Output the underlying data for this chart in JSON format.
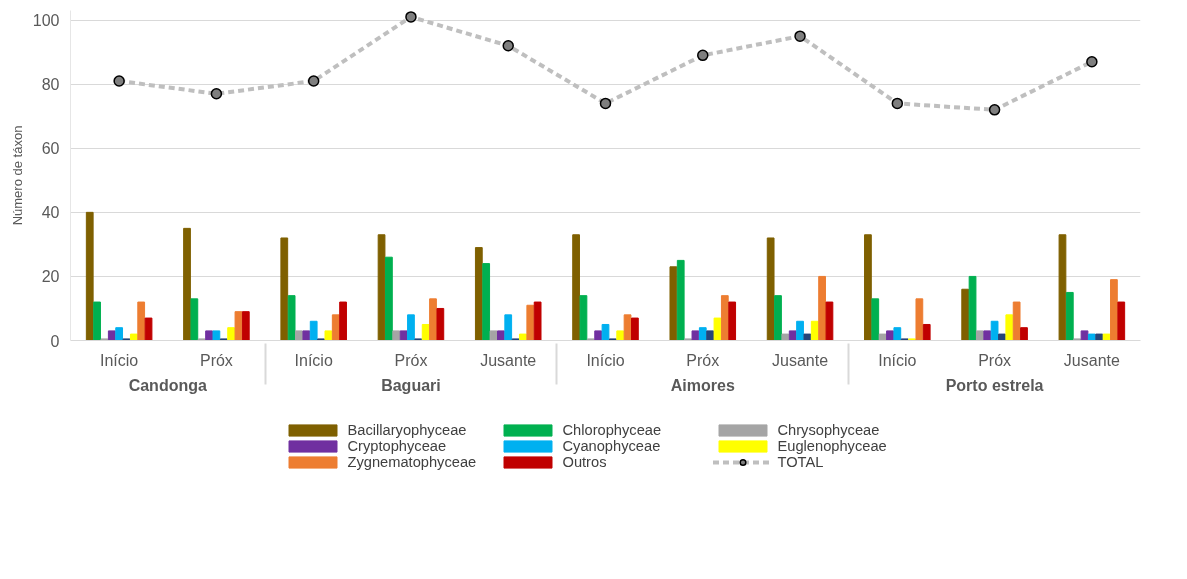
{
  "chart_data": {
    "type": "bar",
    "ylabel": "Número de táxon",
    "categories": [
      [
        "Candonga",
        "Início"
      ],
      [
        null,
        "Próx"
      ],
      [
        "Baguari",
        "Início"
      ],
      [
        null,
        "Próx"
      ],
      [
        null,
        "Jusante"
      ],
      [
        "Aimores",
        "Início"
      ],
      [
        null,
        "Próx"
      ],
      [
        null,
        "Jusante"
      ],
      [
        "Porto estrela",
        "Início"
      ],
      [
        null,
        "Próx"
      ],
      [
        null,
        "Jusante"
      ]
    ],
    "series": [
      {
        "name": "Bacillaryophyceae",
        "color": "#7f6000",
        "values": [
          40,
          35,
          32,
          33,
          29,
          33,
          23,
          32,
          33,
          16,
          33
        ]
      },
      {
        "name": "Chlorophyceae",
        "color": "#00b050",
        "values": [
          12,
          13,
          14,
          26,
          24,
          14,
          25,
          14,
          13,
          20,
          15
        ]
      },
      {
        "name": "Chrysophyceae",
        "color": "#a5a5a5",
        "values": [
          0.5,
          0.5,
          3,
          3,
          3,
          0.5,
          0.5,
          2,
          2,
          3,
          0.5
        ]
      },
      {
        "name": "Cryptophyceae",
        "color": "#7030a0",
        "values": [
          3,
          3,
          3,
          3,
          3,
          3,
          3,
          3,
          3,
          3,
          3
        ]
      },
      {
        "name": "Cyanophyceae",
        "color": "#00b0f0",
        "values": [
          4,
          3,
          6,
          8,
          8,
          5,
          4,
          6,
          4,
          6,
          2
        ]
      },
      {
        "color": "#264478",
        "values": [
          0.5,
          0.5,
          0.5,
          0.5,
          0.5,
          0.5,
          3,
          2,
          0.5,
          2,
          2
        ]
      },
      {
        "name": "Euglenophyceae",
        "color": "#ffff00",
        "values": [
          2,
          4,
          3,
          5,
          2,
          3,
          7,
          6,
          0.5,
          8,
          2
        ]
      },
      {
        "name": "Zygnematophyceae",
        "color": "#ed7d31",
        "values": [
          12,
          9,
          8,
          13,
          11,
          8,
          14,
          20,
          13,
          12,
          19
        ]
      },
      {
        "name": "Outros",
        "color": "#c00000",
        "values": [
          7,
          9,
          12,
          10,
          12,
          7,
          12,
          12,
          5,
          4,
          12
        ]
      },
      {
        "name": "TOTAL",
        "type": "line",
        "color": "#bfbfbf",
        "marker": "circle",
        "line_style": "dashed",
        "values": [
          81,
          77,
          81,
          101,
          92,
          74,
          89,
          95,
          74,
          72,
          87
        ]
      }
    ],
    "ylim": [
      0,
      103
    ],
    "yticks": [
      0,
      20,
      40,
      60,
      80,
      100
    ],
    "grid": "y",
    "legend": "bottom"
  }
}
